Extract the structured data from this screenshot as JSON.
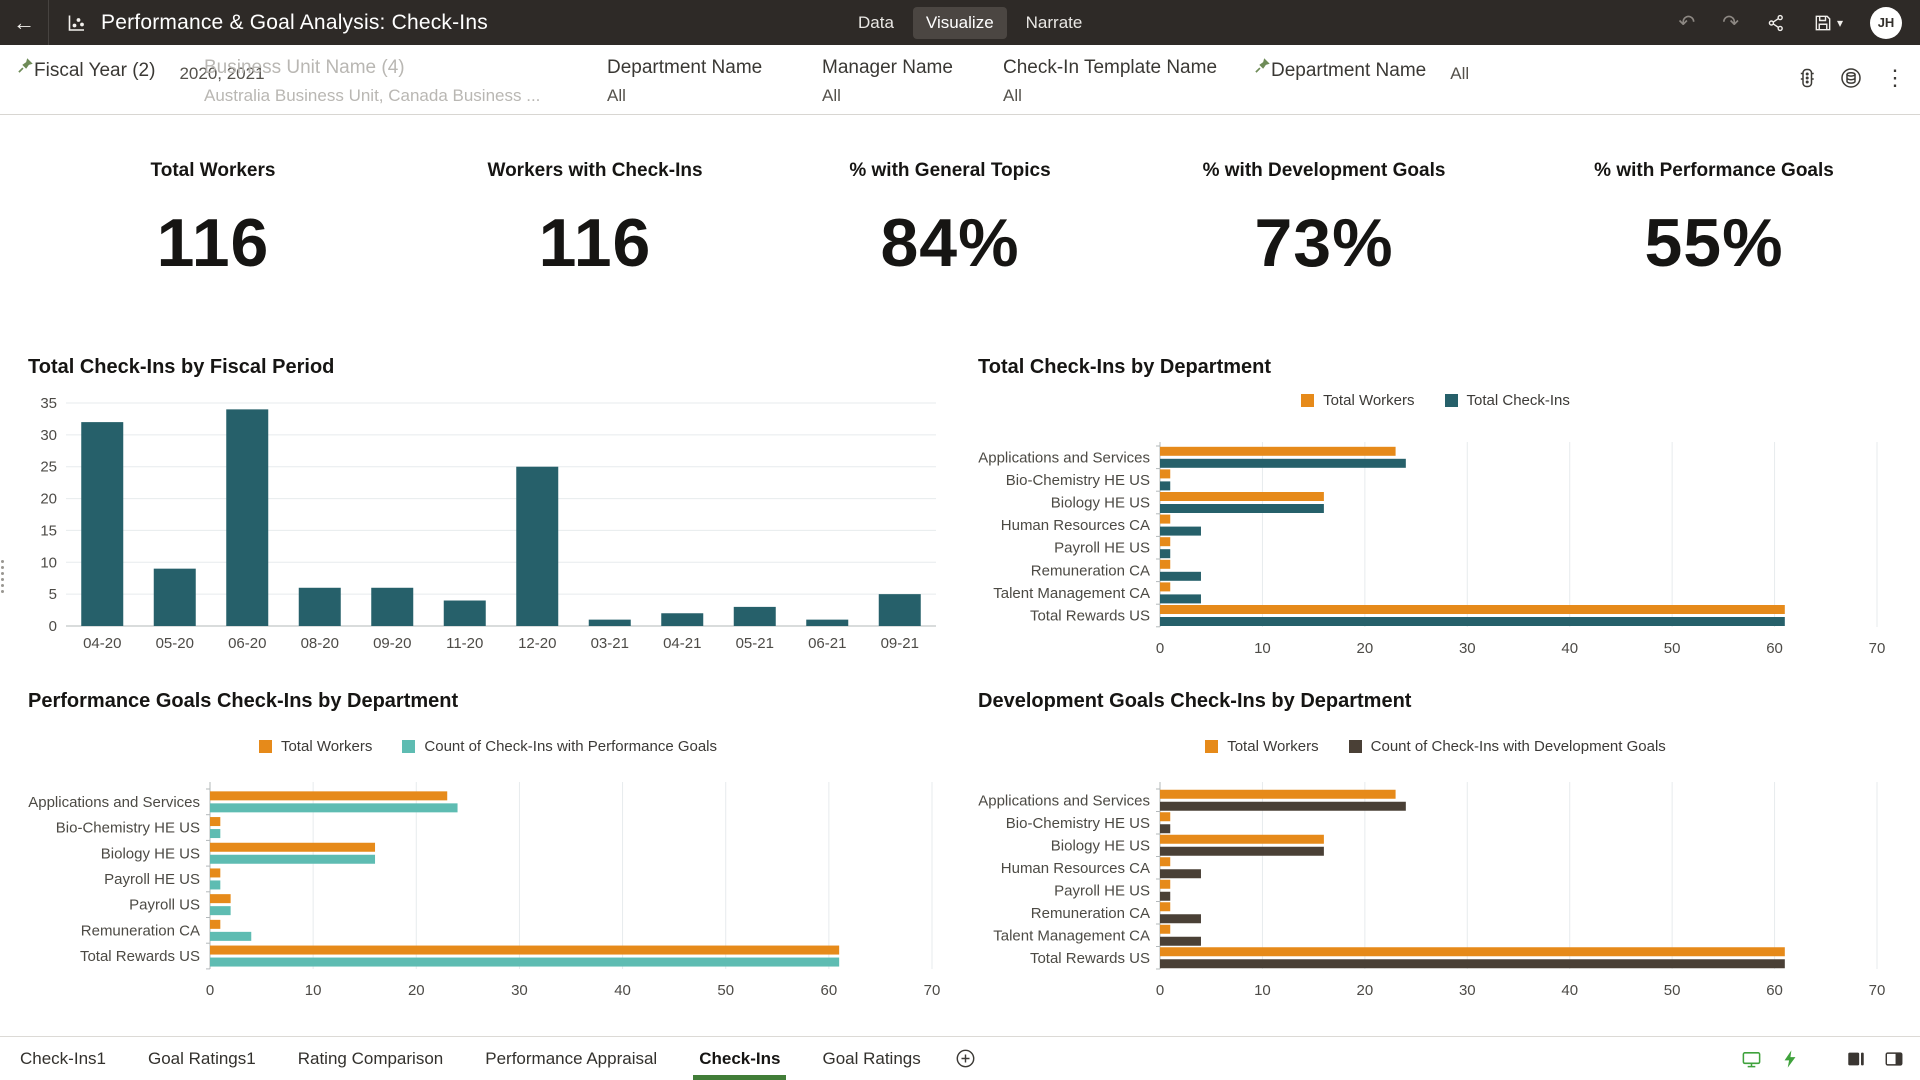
{
  "header": {
    "title": "Performance & Goal Analysis: Check-Ins",
    "tabs": [
      {
        "label": "Data",
        "active": false
      },
      {
        "label": "Visualize",
        "active": true
      },
      {
        "label": "Narrate",
        "active": false
      }
    ],
    "avatar": "JH"
  },
  "icons": {
    "back": "←",
    "undo": "↶",
    "redo": "↷",
    "caret": "▾",
    "kebab": "⋮"
  },
  "filters": {
    "items": [
      {
        "label": "Fiscal Year (2)",
        "value": "2020, 2021",
        "pinned": true,
        "muted": false
      },
      {
        "label": "Business Unit Name (4)",
        "value": "Australia Business Unit, Canada Business ...",
        "pinned": false,
        "muted": true
      },
      {
        "label": "Department Name",
        "value": "All",
        "pinned": false,
        "muted": false
      },
      {
        "label": "Manager Name",
        "value": "All",
        "pinned": false,
        "muted": false
      },
      {
        "label": "Check-In Template Name",
        "value": "All",
        "pinned": false,
        "muted": false
      },
      {
        "label": "Department Name",
        "value": "All",
        "pinned": true,
        "muted": false
      }
    ]
  },
  "kpis": [
    {
      "label": "Total Workers",
      "value": "116"
    },
    {
      "label": "Workers with Check-Ins",
      "value": "116"
    },
    {
      "label": "% with General Topics",
      "value": "84%"
    },
    {
      "label": "% with Development Goals",
      "value": "73%"
    },
    {
      "label": "% with Performance Goals",
      "value": "55%"
    }
  ],
  "colors": {
    "header_bg": "#2e2a27",
    "accent_green": "#417d38",
    "pin_green": "#6e8b57",
    "orange": "#e68a1a",
    "teal": "#26606a",
    "light_teal": "#5ebcb2",
    "dark_brown": "#4a4036",
    "footer_icon_green": "#3fa23c"
  },
  "chart_data": [
    {
      "id": "fiscal_period",
      "type": "bar",
      "title": "Total Check-Ins by Fiscal Period",
      "categories": [
        "04-20",
        "05-20",
        "06-20",
        "08-20",
        "09-20",
        "11-20",
        "12-20",
        "03-21",
        "04-21",
        "05-21",
        "06-21",
        "09-21"
      ],
      "values": [
        32,
        9,
        34,
        6,
        6,
        4,
        25,
        1,
        2,
        3,
        1,
        5
      ],
      "ylim": [
        0,
        35
      ],
      "ytick_step": 5,
      "bar_color": "#26606a",
      "grid": true,
      "legend": null
    },
    {
      "id": "by_department",
      "type": "bar-horizontal",
      "title": "Total Check-Ins by Department",
      "categories": [
        "Applications and Services",
        "Bio-Chemistry HE US",
        "Biology HE US",
        "Human Resources CA",
        "Payroll HE US",
        "Remuneration CA",
        "Talent Management CA",
        "Total Rewards US"
      ],
      "series": [
        {
          "name": "Total Workers",
          "color": "#e68a1a",
          "values": [
            23,
            1,
            16,
            1,
            1,
            1,
            1,
            61
          ]
        },
        {
          "name": "Total Check-Ins",
          "color": "#26606a",
          "values": [
            24,
            1,
            16,
            4,
            1,
            4,
            4,
            61
          ]
        }
      ],
      "xlim": [
        0,
        70
      ],
      "xtick_step": 10,
      "grid": true,
      "legend_position": "top"
    },
    {
      "id": "performance_goals",
      "type": "bar-horizontal",
      "title": "Performance Goals Check-Ins by Department",
      "categories": [
        "Applications and Services",
        "Bio-Chemistry HE US",
        "Biology HE US",
        "Payroll HE US",
        "Payroll US",
        "Remuneration CA",
        "Total Rewards US"
      ],
      "series": [
        {
          "name": "Total Workers",
          "color": "#e68a1a",
          "values": [
            23,
            1,
            16,
            1,
            2,
            1,
            61
          ]
        },
        {
          "name": "Count of Check-Ins with Performance Goals",
          "color": "#5ebcb2",
          "values": [
            24,
            1,
            16,
            1,
            2,
            4,
            61
          ]
        }
      ],
      "xlim": [
        0,
        70
      ],
      "xtick_step": 10,
      "grid": true,
      "legend_position": "top"
    },
    {
      "id": "development_goals",
      "type": "bar-horizontal",
      "title": "Development Goals Check-Ins by Department",
      "categories": [
        "Applications and Services",
        "Bio-Chemistry HE US",
        "Biology HE US",
        "Human Resources CA",
        "Payroll HE US",
        "Remuneration CA",
        "Talent Management CA",
        "Total Rewards US"
      ],
      "series": [
        {
          "name": "Total Workers",
          "color": "#e68a1a",
          "values": [
            23,
            1,
            16,
            1,
            1,
            1,
            1,
            61
          ]
        },
        {
          "name": "Count of Check-Ins with Development Goals",
          "color": "#4a4036",
          "values": [
            24,
            1,
            16,
            4,
            1,
            4,
            4,
            61
          ]
        }
      ],
      "xlim": [
        0,
        70
      ],
      "xtick_step": 10,
      "grid": true,
      "legend_position": "top"
    }
  ],
  "footer": {
    "tabs": [
      {
        "label": "Check-Ins1",
        "active": false
      },
      {
        "label": "Goal Ratings1",
        "active": false
      },
      {
        "label": "Rating Comparison",
        "active": false
      },
      {
        "label": "Performance Appraisal",
        "active": false
      },
      {
        "label": "Check-Ins",
        "active": true
      },
      {
        "label": "Goal Ratings",
        "active": false
      }
    ]
  }
}
